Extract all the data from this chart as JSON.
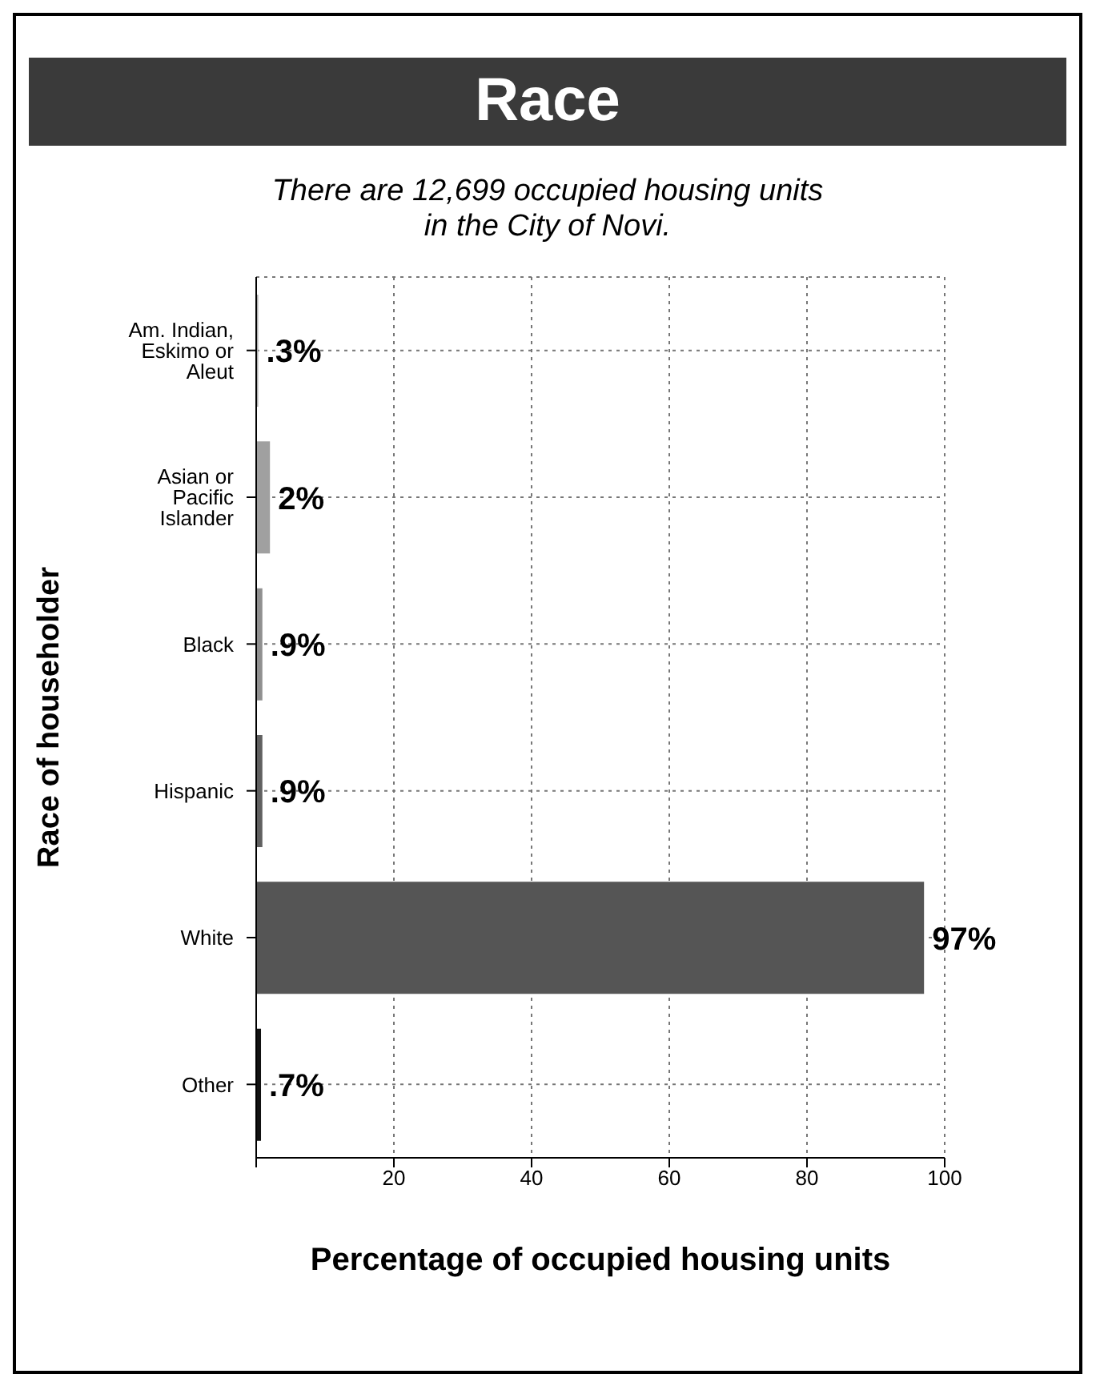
{
  "chart_data": {
    "type": "bar",
    "orientation": "horizontal",
    "title": "Race",
    "subtitle": "There are 12,699 occupied housing units in the City of Novi.",
    "categories": [
      "Am. Indian, Eskimo or Aleut",
      "Asian or Pacific Islander",
      "Black",
      "Hispanic",
      "White",
      "Other"
    ],
    "values": [
      0.3,
      2,
      0.9,
      0.9,
      97,
      0.7
    ],
    "value_labels": [
      ".3%",
      "2%",
      ".9%",
      ".9%",
      "97%",
      ".7%"
    ],
    "colors": [
      "#b0b0b0",
      "#a0a0a0",
      "#909090",
      "#606060",
      "#555555",
      "#111111"
    ],
    "xlim": [
      0,
      100
    ],
    "xticks": [
      {
        "value": 0,
        "label": null
      },
      20,
      40,
      60,
      80,
      100
    ],
    "xlabel": "Percentage of occupied housing units",
    "ylabel": "Race of householder",
    "grid": true,
    "line_style": "dotted"
  }
}
